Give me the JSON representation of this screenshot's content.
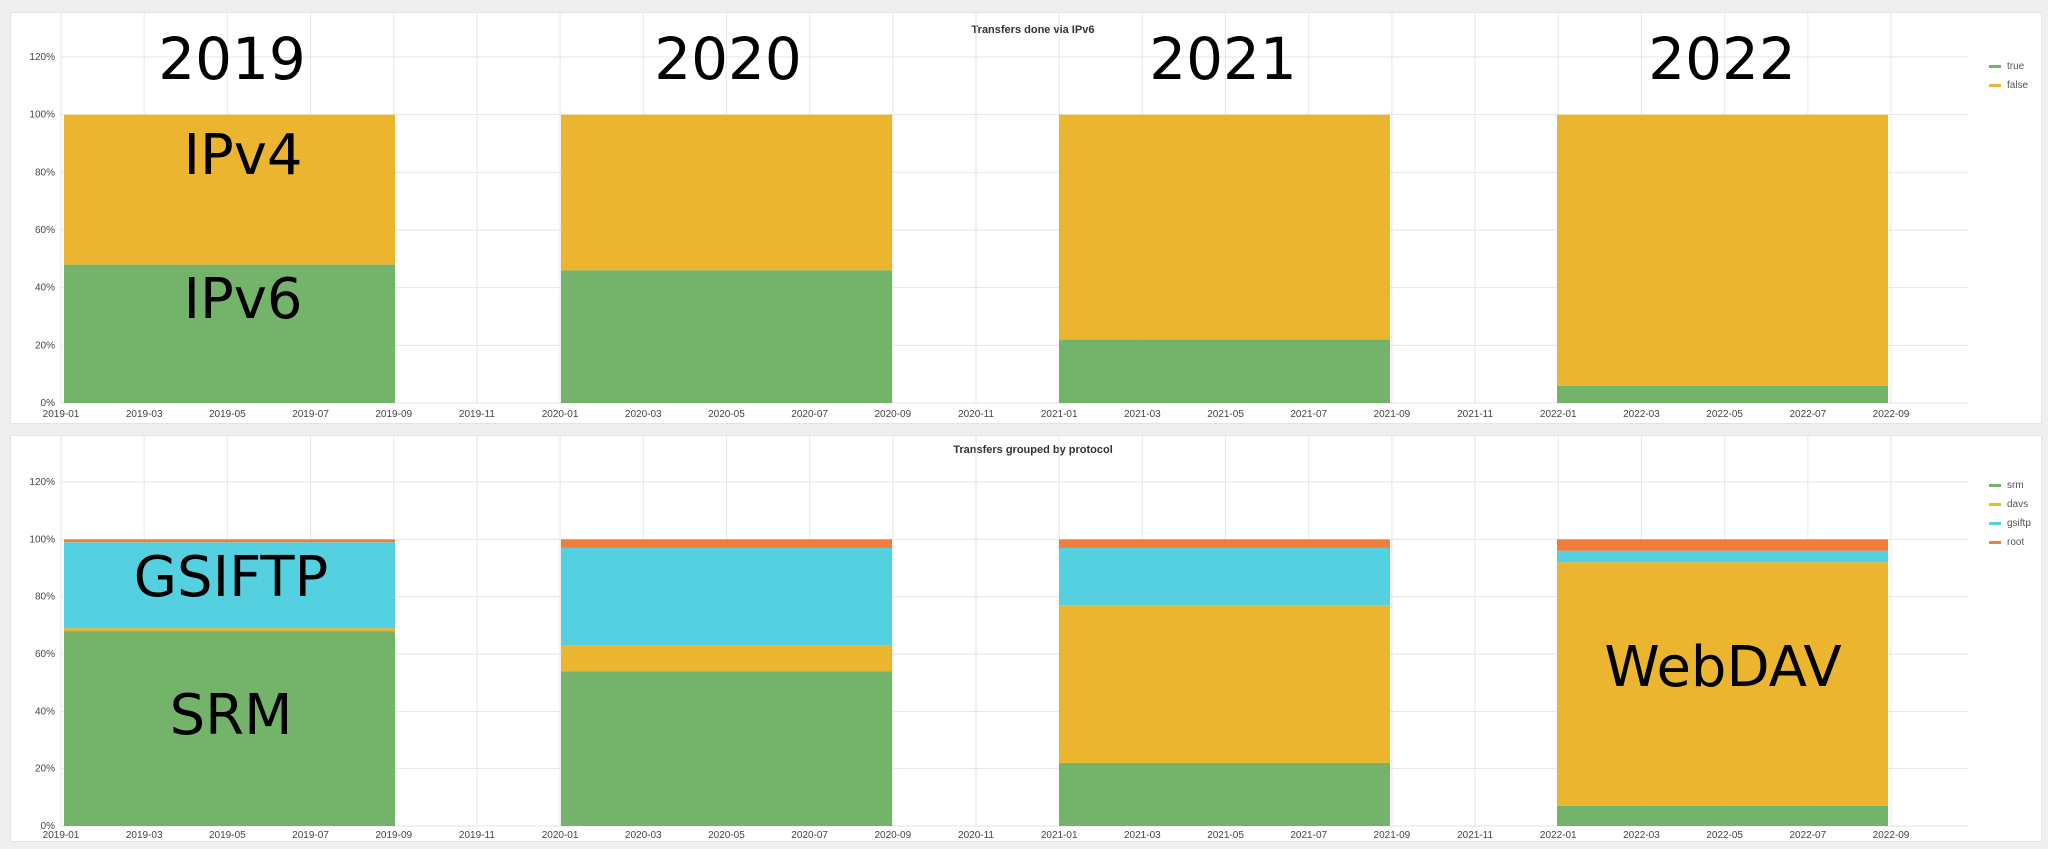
{
  "colors": {
    "true": "#73b46a",
    "false": "#ecb52f",
    "srm": "#73b46a",
    "davs": "#ecb52f",
    "gsiftp": "#55d0e0",
    "root": "#f07d3a"
  },
  "chart_data": [
    {
      "type": "bar",
      "stacked": true,
      "title": "Transfers done via IPv6",
      "ylim": [
        0,
        120
      ],
      "yticks": [
        "0%",
        "20%",
        "40%",
        "60%",
        "80%",
        "100%",
        "120%"
      ],
      "xticks": [
        "2019-01",
        "2019-03",
        "2019-05",
        "2019-07",
        "2019-09",
        "2019-11",
        "2020-01",
        "2020-03",
        "2020-05",
        "2020-07",
        "2020-09",
        "2020-11",
        "2021-01",
        "2021-03",
        "2021-05",
        "2021-07",
        "2021-09",
        "2021-11",
        "2022-01",
        "2022-03",
        "2022-05",
        "2022-07",
        "2022-09"
      ],
      "grid": true,
      "legend_position": "top-right",
      "categories": [
        "2019",
        "2020",
        "2021",
        "2022"
      ],
      "series": [
        {
          "name": "true",
          "values": [
            48,
            46,
            22,
            6
          ]
        },
        {
          "name": "false",
          "values": [
            52,
            54,
            78,
            94
          ]
        }
      ],
      "annotations": {
        "years": [
          "2019",
          "2020",
          "2021",
          "2022"
        ],
        "labels": [
          "IPv4",
          "IPv6"
        ]
      }
    },
    {
      "type": "bar",
      "stacked": true,
      "title": "Transfers grouped by protocol",
      "ylim": [
        0,
        120
      ],
      "yticks": [
        "0%",
        "20%",
        "40%",
        "60%",
        "80%",
        "100%",
        "120%"
      ],
      "xticks": [
        "2019-01",
        "2019-03",
        "2019-05",
        "2019-07",
        "2019-09",
        "2019-11",
        "2020-01",
        "2020-03",
        "2020-05",
        "2020-07",
        "2020-09",
        "2020-11",
        "2021-01",
        "2021-03",
        "2021-05",
        "2021-07",
        "2021-09",
        "2021-11",
        "2022-01",
        "2022-03",
        "2022-05",
        "2022-07",
        "2022-09"
      ],
      "grid": true,
      "legend_position": "top-right",
      "categories": [
        "2019",
        "2020",
        "2021",
        "2022"
      ],
      "series": [
        {
          "name": "srm",
          "values": [
            68,
            54,
            22,
            7
          ]
        },
        {
          "name": "davs",
          "values": [
            1,
            9,
            55,
            85
          ]
        },
        {
          "name": "gsiftp",
          "values": [
            30,
            34,
            20,
            4
          ]
        },
        {
          "name": "root",
          "values": [
            1,
            3,
            3,
            4
          ]
        }
      ],
      "annotations": {
        "labels": [
          "GSIFTP",
          "SRM",
          "WebDAV"
        ]
      }
    }
  ]
}
